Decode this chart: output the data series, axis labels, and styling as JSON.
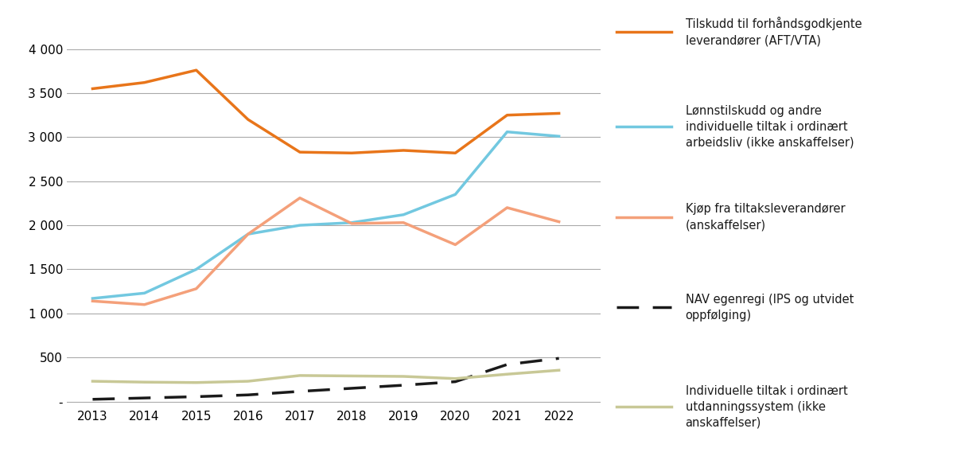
{
  "years": [
    2013,
    2014,
    2015,
    2016,
    2017,
    2018,
    2019,
    2020,
    2021,
    2022
  ],
  "series": {
    "tilskudd_aft_vta": {
      "values": [
        3550,
        3620,
        3760,
        3200,
        2830,
        2820,
        2850,
        2820,
        3250,
        3270
      ],
      "color": "#E8751A",
      "label": "Tilskudd til forhåndsgodkjente\nleverandører (AFT/VTA)",
      "linestyle": "solid",
      "linewidth": 2.5,
      "dash": null
    },
    "lonnstilskudd": {
      "values": [
        1170,
        1230,
        1500,
        1900,
        2000,
        2030,
        2120,
        2350,
        3060,
        3010
      ],
      "color": "#72C8E0",
      "label": "Lønnstilskudd og andre\nindividuelle tiltak i ordinært\narbeidsliv (ikke anskaffelser)",
      "linestyle": "solid",
      "linewidth": 2.5,
      "dash": null
    },
    "kjop_tiltakslev": {
      "values": [
        1140,
        1100,
        1280,
        1900,
        2310,
        2020,
        2030,
        1780,
        2200,
        2040
      ],
      "color": "#F4A07A",
      "label": "Kjøp fra tiltaksleverandører\n(anskaffelser)",
      "linestyle": "solid",
      "linewidth": 2.5,
      "dash": null
    },
    "nav_egenregi": {
      "values": [
        25,
        40,
        55,
        75,
        115,
        150,
        185,
        225,
        420,
        490
      ],
      "color": "#1A1A1A",
      "label": "NAV egenregi (IPS og utvidet\noppfølging)",
      "linestyle": "dashed",
      "linewidth": 2.5,
      "dash": [
        8,
        5
      ]
    },
    "individuelle_utdanning": {
      "values": [
        230,
        220,
        215,
        230,
        295,
        290,
        285,
        260,
        310,
        355
      ],
      "color": "#C8C896",
      "label": "Individuelle tiltak i ordinært\nutdanningssystem (ikke\nanskaffelser)",
      "linestyle": "solid",
      "linewidth": 2.5,
      "dash": null
    }
  },
  "ylim": [
    -60,
    4300
  ],
  "yticks": [
    0,
    500,
    1000,
    1500,
    2000,
    2500,
    3000,
    3500,
    4000
  ],
  "ytick_labels": [
    "-",
    "500",
    "1 000",
    "1 500",
    "2 000",
    "2 500",
    "3 000",
    "3 500",
    "4 000"
  ],
  "xlim": [
    2012.5,
    2022.8
  ],
  "background_color": "#FFFFFF",
  "grid_color": "#AAAAAA",
  "tick_fontsize": 11,
  "legend_fontsize": 10.5
}
